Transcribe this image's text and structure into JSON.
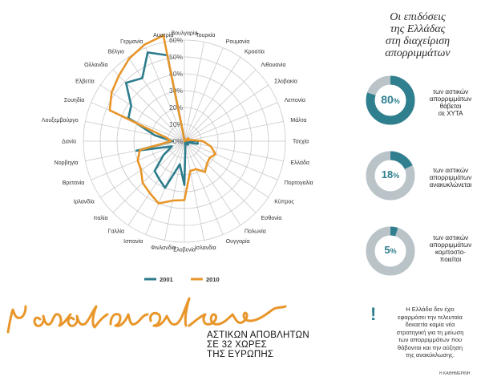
{
  "chart_data": {
    "type": "radar",
    "categories": [
      "Βουλγαρία",
      "Τουρκία",
      "Ρουμανία",
      "Κροατία",
      "Λιθουανία",
      "Σλοβακία",
      "Λεττονία",
      "Μάλτα",
      "Τσεχία",
      "Ελλάδα",
      "Πορτογαλία",
      "Κύπρος",
      "Εσθονία",
      "Πολωνία",
      "Ουγγαρία",
      "Ισλανδία",
      "Σλοβενία",
      "Φινλανδία",
      "Ισπανία",
      "Γαλλία",
      "Ιταλία",
      "Ιρλανδία",
      "Βρετανία",
      "Νορβηγία",
      "Δανία",
      "Λουξεμβούργο",
      "Σουηδία",
      "Ελβετία",
      "Ολλανδία",
      "Βέλγιο",
      "Γερμανία",
      "Αυστρία"
    ],
    "ticks": [
      "0%",
      "10%",
      "20%",
      "30%",
      "40%",
      "50%",
      "60%"
    ],
    "rmax": 60,
    "series": [
      {
        "name": "2001",
        "color": "#2c7c8c",
        "values": [
          1,
          0,
          0,
          0,
          1,
          2,
          1,
          1,
          8,
          8,
          2,
          1,
          3,
          2,
          1,
          3,
          26,
          14,
          30,
          27,
          25,
          15,
          8,
          29,
          7,
          18,
          36,
          38,
          49,
          45,
          57,
          52
        ]
      },
      {
        "name": "2010",
        "color": "#e8962a",
        "values": [
          1,
          0,
          0,
          0,
          1,
          3,
          1,
          4,
          11,
          16,
          20,
          18,
          19,
          22,
          18,
          18,
          35,
          36,
          40,
          37,
          35,
          31,
          30,
          27,
          8,
          11,
          48,
          52,
          55,
          59,
          62,
          64
        ]
      }
    ]
  },
  "side": {
    "title_lines": [
      "Οι επιδόσεις",
      "της Ελλάδας",
      "στη διαχείριση",
      "απορριμμάτων"
    ],
    "stats": [
      {
        "value": 80,
        "pct_label": "80",
        "pct_sign": "%",
        "text_lines": [
          "των αστικών",
          "απορριμμάτων",
          "θάβεται",
          "σε ΧΥΤΑ"
        ]
      },
      {
        "value": 18,
        "pct_label": "18",
        "pct_sign": "%",
        "text_lines": [
          "των αστικών",
          "απορριμμάτων",
          "ανακυκλώνεται"
        ]
      },
      {
        "value": 5,
        "pct_label": "5",
        "pct_sign": "%",
        "text_lines": [
          "των αστικών",
          "απορριμμάτων",
          "κομποστο-",
          "ποιείται"
        ]
      }
    ],
    "note_icon": "!",
    "note_lines": [
      "Η Ελλάδα δεν έχει",
      "εφαρμόσει την τελευταία",
      "δεκαετία καμία νέα",
      "στρατηγική για τη μείωση",
      "των απορριμμάτων που",
      "θάβονται και την αύξηση",
      "της ανακύκλωσης."
    ],
    "colors": {
      "accent": "#2f7f8f",
      "light": "#b9c3c8",
      "orange": "#e8962a"
    }
  },
  "headline": {
    "script_word": "η ανακύκλωση",
    "subtitle_lines": [
      "ΑΣΤΙΚΩΝ ΑΠΟΒΛΗΤΩΝ",
      "ΣΕ 32 ΧΩΡΕΣ",
      "ΤΗΣ ΕΥΡΩΠΗΣ"
    ],
    "credit": "Η ΚΑΘΗΜΕΡΙΝΗ"
  }
}
